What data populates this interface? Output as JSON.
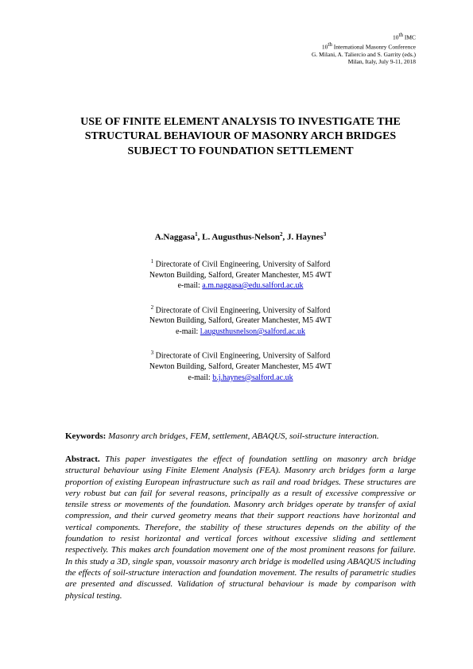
{
  "header": {
    "line1": "10",
    "line1_sup": "th",
    "line1_tail": " IMC",
    "line2_part1": "10",
    "line2_sup": "th",
    "line2_part2": " International Masonry Conference",
    "line3": "G. Milani, A. Taliercio and S. Garrity (eds.)",
    "line4": "Milan, Italy, July 9-11, 2018"
  },
  "title": "USE OF FINITE ELEMENT ANALYSIS TO INVESTIGATE THE STRUCTURAL BEHAVIOUR OF MASONRY ARCH BRIDGES SUBJECT TO FOUNDATION SETTLEMENT",
  "authors": {
    "a1_name": "A.Naggasa",
    "a1_sup": "1",
    "sep1": ", ",
    "a2_name": "L. Augusthus-Nelson",
    "a2_sup": "2",
    "sep2": ", ",
    "a3_name": "J. Haynes",
    "a3_sup": "3"
  },
  "affiliations": [
    {
      "sup": "1",
      "line1": " Directorate of Civil Engineering, University of Salford",
      "line2": "Newton Building, Salford, Greater Manchester, M5 4WT",
      "email_prefix": "e-mail: ",
      "email": "a.m.naggasa@edu.salford.ac.uk"
    },
    {
      "sup": "2",
      "line1": " Directorate of Civil Engineering, University of Salford",
      "line2": "Newton Building, Salford, Greater Manchester, M5 4WT",
      "email_prefix": "e-mail: ",
      "email": "l.augusthusnelson@salford.ac.uk"
    },
    {
      "sup": "3",
      "line1": " Directorate of Civil Engineering, University of Salford",
      "line2": "Newton Building, Salford, Greater Manchester, M5 4WT",
      "email_prefix": "e-mail: ",
      "email": "b.j.haynes@salford.ac.uk"
    }
  ],
  "keywords": {
    "label": "Keywords: ",
    "text": "Masonry arch bridges, FEM, settlement, ABAQUS, soil-structure interaction."
  },
  "abstract": {
    "label": "Abstract. ",
    "text": "This paper investigates the effect of foundation settling on masonry arch bridge structural behaviour using Finite Element Analysis (FEA). Masonry arch bridges form a large proportion of existing European infrastructure such as rail and road bridges. These structures are very robust but can fail for several reasons, principally as a result of excessive compressive or tensile stress or movements of the foundation. Masonry arch bridges operate by transfer of axial compression, and their curved geometry means that their support reactions have horizontal and vertical components. Therefore, the stability of these structures depends on the ability of the foundation to resist horizontal and vertical forces without excessive sliding and settlement respectively. This makes arch foundation movement one of the most prominent reasons for failure. In this study a 3D, single span, voussoir masonry arch bridge is modelled using ABAQUS including the effects of soil-structure interaction and foundation movement. The results of parametric studies are presented and discussed. Validation of structural behaviour is made by comparison with physical testing."
  },
  "colors": {
    "background": "#ffffff",
    "text": "#000000",
    "link": "#0000cc"
  }
}
